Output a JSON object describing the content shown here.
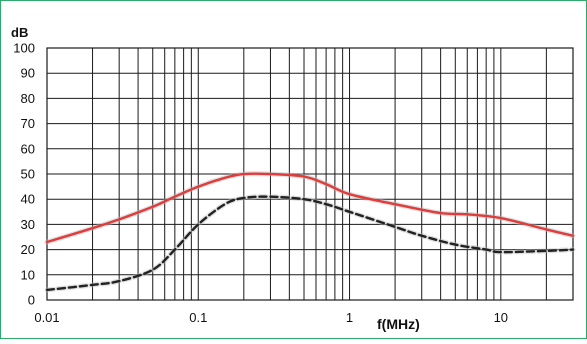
{
  "chart_data": {
    "type": "line",
    "title": "",
    "ylabel": "dB",
    "xlabel": "f(MHz)",
    "x_scale": "log",
    "xlim": [
      0.01,
      30
    ],
    "ylim": [
      0,
      100
    ],
    "grid": true,
    "x_ticks": [
      0.01,
      0.1,
      1,
      10
    ],
    "x_tick_labels": [
      "0.01",
      "0.1",
      "1",
      "10"
    ],
    "y_ticks": [
      0,
      10,
      20,
      30,
      40,
      50,
      60,
      70,
      80,
      90,
      100
    ],
    "series": [
      {
        "color": "#e03c3c",
        "style": "solid",
        "x": [
          0.01,
          0.02,
          0.03,
          0.05,
          0.07,
          0.1,
          0.15,
          0.2,
          0.3,
          0.5,
          0.7,
          1,
          2,
          4,
          6,
          10,
          20,
          30
        ],
        "y": [
          23,
          28.5,
          32,
          37,
          41,
          45,
          48.5,
          50,
          50,
          49,
          46,
          42,
          38,
          34.5,
          34,
          32.5,
          28,
          25.5
        ]
      },
      {
        "color": "#222222",
        "style": "dashed",
        "x": [
          0.01,
          0.02,
          0.03,
          0.05,
          0.07,
          0.1,
          0.15,
          0.2,
          0.3,
          0.5,
          0.7,
          1,
          2,
          3,
          5,
          8,
          10,
          20,
          30
        ],
        "y": [
          4,
          6,
          7.5,
          12,
          20,
          30,
          38,
          40.5,
          41,
          40,
          38,
          35,
          29,
          25.5,
          22,
          20,
          19,
          19.5,
          20
        ]
      }
    ]
  },
  "colors": {
    "frame_border": "#2eaa6b",
    "grid": "#1a1a1a",
    "axis": "#1a1a1a"
  }
}
